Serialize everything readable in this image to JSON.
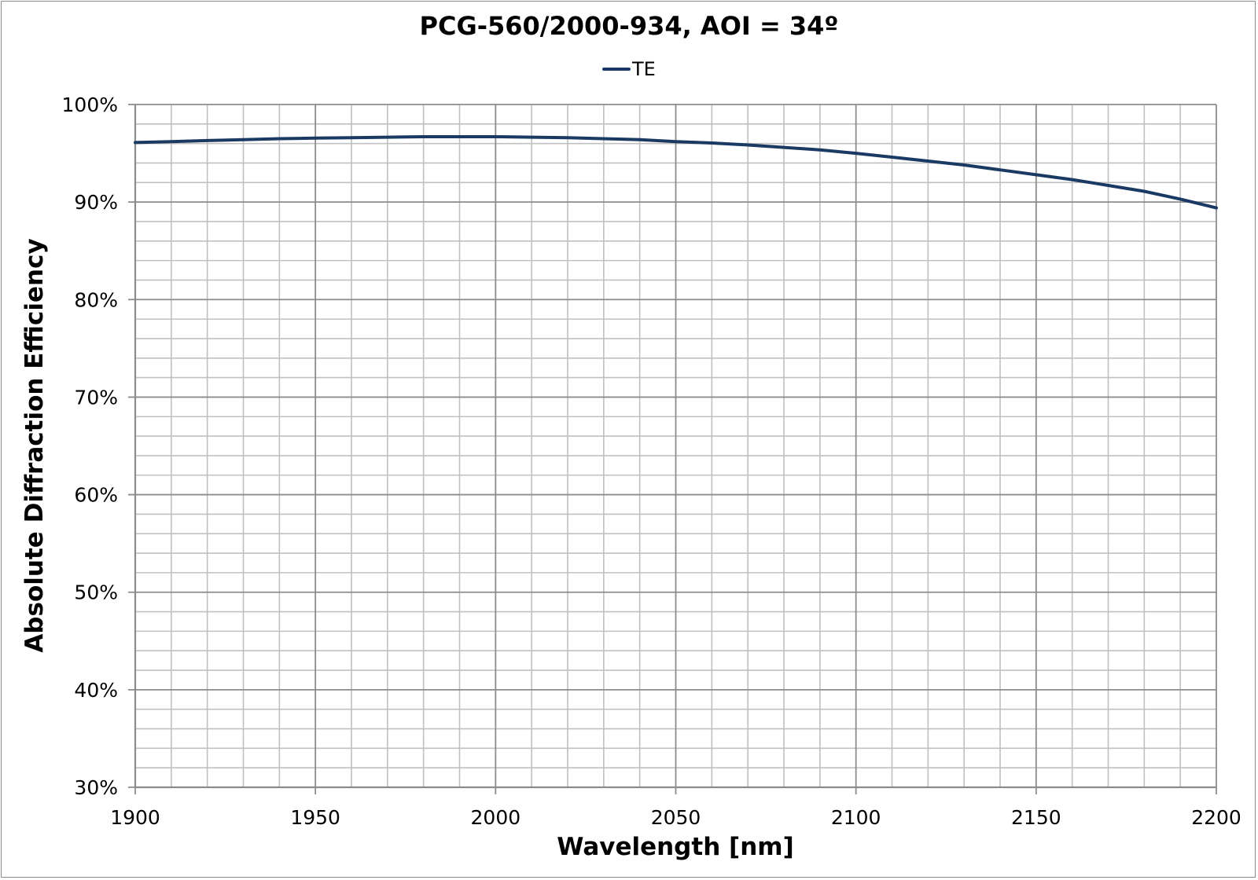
{
  "chart_data": {
    "type": "line",
    "title": "PCG-560/2000-934, AOI = 34º",
    "xlabel": "Wavelength [nm]",
    "ylabel": "Absolute Diffraction Efficiency",
    "xlim": [
      1900,
      2200
    ],
    "ylim": [
      30,
      100
    ],
    "x_ticks": [
      1900,
      1950,
      2000,
      2050,
      2100,
      2150,
      2200
    ],
    "x_tick_labels": [
      "1900",
      "1950",
      "2000",
      "2050",
      "2100",
      "2150",
      "2200"
    ],
    "y_ticks": [
      30,
      40,
      50,
      60,
      70,
      80,
      90,
      100
    ],
    "y_tick_labels": [
      "30%",
      "40%",
      "50%",
      "60%",
      "70%",
      "80%",
      "90%",
      "100%"
    ],
    "x_minor_step": 10,
    "y_minor_step": 2,
    "grid": true,
    "legend_position": "top-center",
    "series": [
      {
        "name": "TE",
        "color": "#1b3a63",
        "x": [
          1900,
          1910,
          1920,
          1930,
          1940,
          1950,
          1960,
          1970,
          1980,
          1990,
          2000,
          2010,
          2020,
          2030,
          2040,
          2050,
          2060,
          2070,
          2080,
          2090,
          2100,
          2110,
          2120,
          2130,
          2140,
          2150,
          2160,
          2170,
          2180,
          2190,
          2200
        ],
        "values": [
          96.1,
          96.2,
          96.3,
          96.4,
          96.5,
          96.55,
          96.6,
          96.65,
          96.7,
          96.7,
          96.7,
          96.65,
          96.6,
          96.5,
          96.4,
          96.2,
          96.05,
          95.85,
          95.6,
          95.35,
          95.0,
          94.6,
          94.2,
          93.8,
          93.3,
          92.8,
          92.3,
          91.7,
          91.1,
          90.3,
          89.4
        ]
      }
    ]
  },
  "colors": {
    "line": "#1b3a63",
    "major_grid": "#8c8c8c",
    "minor_grid": "#c0c0c0",
    "frame": "#8c8c8c"
  }
}
